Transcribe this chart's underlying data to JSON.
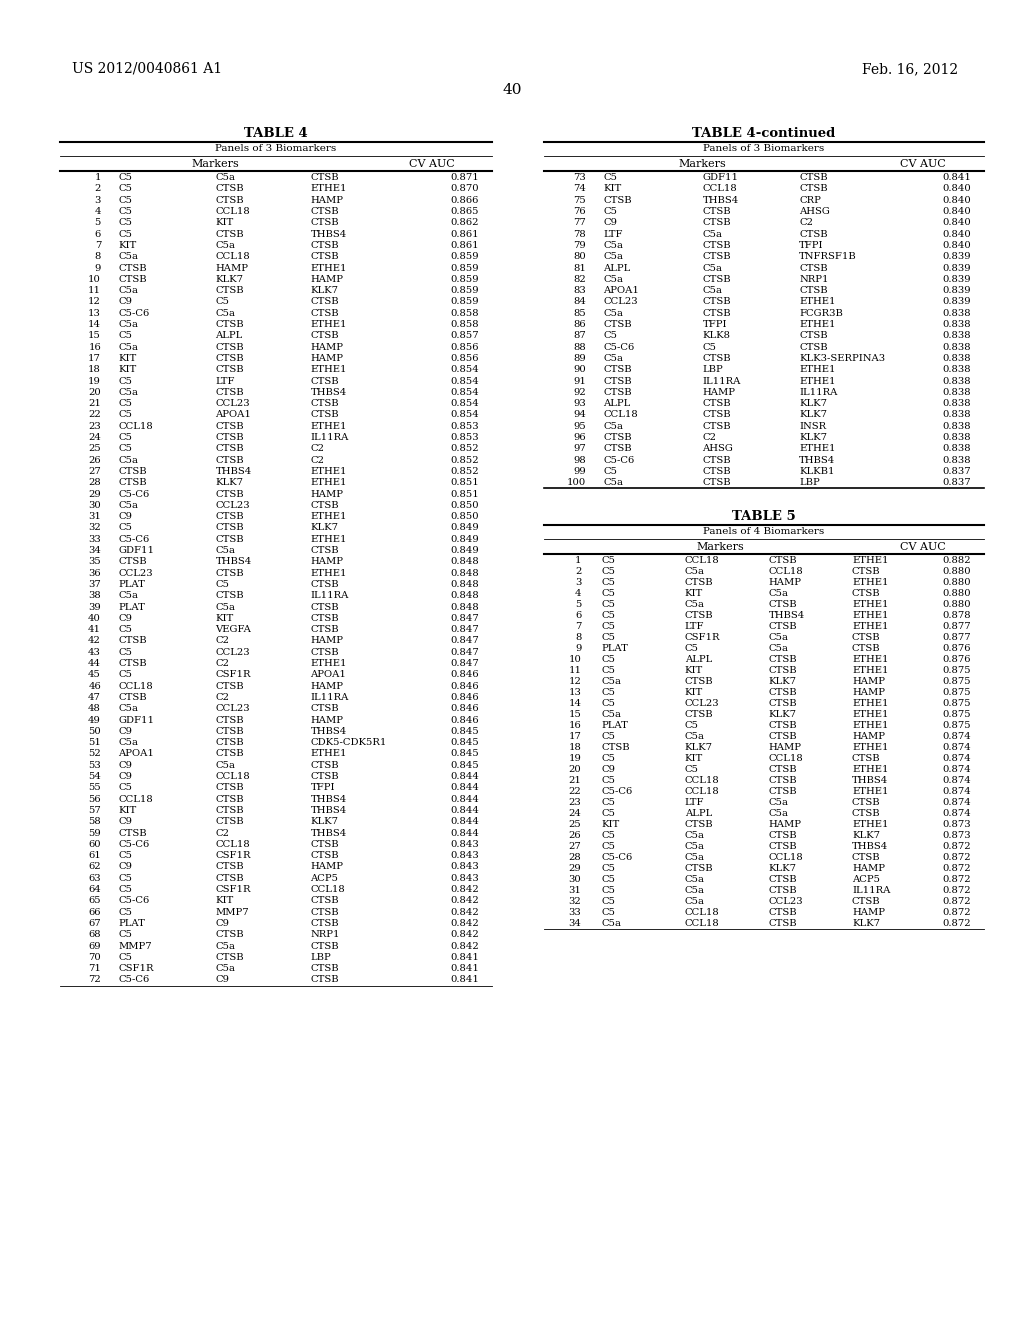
{
  "header_left": "US 2012/0040861 A1",
  "header_right": "Feb. 16, 2012",
  "page_number": "40",
  "table4_title": "TABLE 4",
  "table4_subtitle": "Panels of 3 Biomarkers",
  "table4cont_title": "TABLE 4-continued",
  "table4cont_subtitle": "Panels of 3 Biomarkers",
  "table5_title": "TABLE 5",
  "table5_subtitle": "Panels of 4 Biomarkers",
  "col3_headers": [
    "Markers",
    "CV AUC"
  ],
  "col4_headers": [
    "Markers",
    "CV AUC"
  ],
  "table4_data": [
    [
      "1",
      "C5",
      "C5a",
      "CTSB",
      "0.871"
    ],
    [
      "2",
      "C5",
      "CTSB",
      "ETHE1",
      "0.870"
    ],
    [
      "3",
      "C5",
      "CTSB",
      "HAMP",
      "0.866"
    ],
    [
      "4",
      "C5",
      "CCL18",
      "CTSB",
      "0.865"
    ],
    [
      "5",
      "C5",
      "KIT",
      "CTSB",
      "0.862"
    ],
    [
      "6",
      "C5",
      "CTSB",
      "THBS4",
      "0.861"
    ],
    [
      "7",
      "KIT",
      "C5a",
      "CTSB",
      "0.861"
    ],
    [
      "8",
      "C5a",
      "CCL18",
      "CTSB",
      "0.859"
    ],
    [
      "9",
      "CTSB",
      "HAMP",
      "ETHE1",
      "0.859"
    ],
    [
      "10",
      "CTSB",
      "KLK7",
      "HAMP",
      "0.859"
    ],
    [
      "11",
      "C5a",
      "CTSB",
      "KLK7",
      "0.859"
    ],
    [
      "12",
      "C9",
      "C5",
      "CTSB",
      "0.859"
    ],
    [
      "13",
      "C5-C6",
      "C5a",
      "CTSB",
      "0.858"
    ],
    [
      "14",
      "C5a",
      "CTSB",
      "ETHE1",
      "0.858"
    ],
    [
      "15",
      "C5",
      "ALPL",
      "CTSB",
      "0.857"
    ],
    [
      "16",
      "C5a",
      "CTSB",
      "HAMP",
      "0.856"
    ],
    [
      "17",
      "KIT",
      "CTSB",
      "HAMP",
      "0.856"
    ],
    [
      "18",
      "KIT",
      "CTSB",
      "ETHE1",
      "0.854"
    ],
    [
      "19",
      "C5",
      "LTF",
      "CTSB",
      "0.854"
    ],
    [
      "20",
      "C5a",
      "CTSB",
      "THBS4",
      "0.854"
    ],
    [
      "21",
      "C5",
      "CCL23",
      "CTSB",
      "0.854"
    ],
    [
      "22",
      "C5",
      "APOA1",
      "CTSB",
      "0.854"
    ],
    [
      "23",
      "CCL18",
      "CTSB",
      "ETHE1",
      "0.853"
    ],
    [
      "24",
      "C5",
      "CTSB",
      "IL11RA",
      "0.853"
    ],
    [
      "25",
      "C5",
      "CTSB",
      "C2",
      "0.852"
    ],
    [
      "26",
      "C5a",
      "CTSB",
      "C2",
      "0.852"
    ],
    [
      "27",
      "CTSB",
      "THBS4",
      "ETHE1",
      "0.852"
    ],
    [
      "28",
      "CTSB",
      "KLK7",
      "ETHE1",
      "0.851"
    ],
    [
      "29",
      "C5-C6",
      "CTSB",
      "HAMP",
      "0.851"
    ],
    [
      "30",
      "C5a",
      "CCL23",
      "CTSB",
      "0.850"
    ],
    [
      "31",
      "C9",
      "CTSB",
      "ETHE1",
      "0.850"
    ],
    [
      "32",
      "C5",
      "CTSB",
      "KLK7",
      "0.849"
    ],
    [
      "33",
      "C5-C6",
      "CTSB",
      "ETHE1",
      "0.849"
    ],
    [
      "34",
      "GDF11",
      "C5a",
      "CTSB",
      "0.849"
    ],
    [
      "35",
      "CTSB",
      "THBS4",
      "HAMP",
      "0.848"
    ],
    [
      "36",
      "CCL23",
      "CTSB",
      "ETHE1",
      "0.848"
    ],
    [
      "37",
      "PLAT",
      "C5",
      "CTSB",
      "0.848"
    ],
    [
      "38",
      "C5a",
      "CTSB",
      "IL11RA",
      "0.848"
    ],
    [
      "39",
      "PLAT",
      "C5a",
      "CTSB",
      "0.848"
    ],
    [
      "40",
      "C9",
      "KIT",
      "CTSB",
      "0.847"
    ],
    [
      "41",
      "C5",
      "VEGFA",
      "CTSB",
      "0.847"
    ],
    [
      "42",
      "CTSB",
      "C2",
      "HAMP",
      "0.847"
    ],
    [
      "43",
      "C5",
      "CCL23",
      "CTSB",
      "0.847"
    ],
    [
      "44",
      "CTSB",
      "C2",
      "ETHE1",
      "0.847"
    ],
    [
      "45",
      "C5",
      "CSF1R",
      "APOA1",
      "0.846"
    ],
    [
      "46",
      "CCL18",
      "CTSB",
      "HAMP",
      "0.846"
    ],
    [
      "47",
      "CTSB",
      "C2",
      "IL11RA",
      "0.846"
    ],
    [
      "48",
      "C5a",
      "CCL23",
      "CTSB",
      "0.846"
    ],
    [
      "49",
      "GDF11",
      "CTSB",
      "HAMP",
      "0.846"
    ],
    [
      "50",
      "C9",
      "CTSB",
      "THBS4",
      "0.845"
    ],
    [
      "51",
      "C5a",
      "CTSB",
      "CDK5-CDK5R1",
      "0.845"
    ],
    [
      "52",
      "APOA1",
      "CTSB",
      "ETHE1",
      "0.845"
    ],
    [
      "53",
      "C9",
      "C5a",
      "CTSB",
      "0.845"
    ],
    [
      "54",
      "C9",
      "CCL18",
      "CTSB",
      "0.844"
    ],
    [
      "55",
      "C5",
      "CTSB",
      "TFPI",
      "0.844"
    ],
    [
      "56",
      "CCL18",
      "CTSB",
      "THBS4",
      "0.844"
    ],
    [
      "57",
      "KIT",
      "CTSB",
      "THBS4",
      "0.844"
    ],
    [
      "58",
      "C9",
      "CTSB",
      "KLK7",
      "0.844"
    ],
    [
      "59",
      "CTSB",
      "C2",
      "THBS4",
      "0.844"
    ],
    [
      "60",
      "C5-C6",
      "CCL18",
      "CTSB",
      "0.843"
    ],
    [
      "61",
      "C5",
      "CSF1R",
      "CTSB",
      "0.843"
    ],
    [
      "62",
      "C9",
      "CTSB",
      "HAMP",
      "0.843"
    ],
    [
      "63",
      "C5",
      "CTSB",
      "ACP5",
      "0.843"
    ],
    [
      "64",
      "C5",
      "CSF1R",
      "CCL18",
      "0.842"
    ],
    [
      "65",
      "C5-C6",
      "KIT",
      "CTSB",
      "0.842"
    ],
    [
      "66",
      "C5",
      "MMP7",
      "CTSB",
      "0.842"
    ],
    [
      "67",
      "PLAT",
      "C9",
      "CTSB",
      "0.842"
    ],
    [
      "68",
      "C5",
      "CTSB",
      "NRP1",
      "0.842"
    ],
    [
      "69",
      "MMP7",
      "C5a",
      "CTSB",
      "0.842"
    ],
    [
      "70",
      "C5",
      "CTSB",
      "LBP",
      "0.841"
    ],
    [
      "71",
      "CSF1R",
      "C5a",
      "CTSB",
      "0.841"
    ],
    [
      "72",
      "C5-C6",
      "C9",
      "CTSB",
      "0.841"
    ]
  ],
  "table4cont_data": [
    [
      "73",
      "C5",
      "GDF11",
      "CTSB",
      "0.841"
    ],
    [
      "74",
      "KIT",
      "CCL18",
      "CTSB",
      "0.840"
    ],
    [
      "75",
      "CTSB",
      "THBS4",
      "CRP",
      "0.840"
    ],
    [
      "76",
      "C5",
      "CTSB",
      "AHSG",
      "0.840"
    ],
    [
      "77",
      "C9",
      "CTSB",
      "C2",
      "0.840"
    ],
    [
      "78",
      "LTF",
      "C5a",
      "CTSB",
      "0.840"
    ],
    [
      "79",
      "C5a",
      "CTSB",
      "TFPI",
      "0.840"
    ],
    [
      "80",
      "C5a",
      "CTSB",
      "TNFRSF1B",
      "0.839"
    ],
    [
      "81",
      "ALPL",
      "C5a",
      "CTSB",
      "0.839"
    ],
    [
      "82",
      "C5a",
      "CTSB",
      "NRP1",
      "0.839"
    ],
    [
      "83",
      "APOA1",
      "C5a",
      "CTSB",
      "0.839"
    ],
    [
      "84",
      "CCL23",
      "CTSB",
      "ETHE1",
      "0.839"
    ],
    [
      "85",
      "C5a",
      "CTSB",
      "FCGR3B",
      "0.838"
    ],
    [
      "86",
      "CTSB",
      "TFPI",
      "ETHE1",
      "0.838"
    ],
    [
      "87",
      "C5",
      "KLK8",
      "CTSB",
      "0.838"
    ],
    [
      "88",
      "C5-C6",
      "C5",
      "CTSB",
      "0.838"
    ],
    [
      "89",
      "C5a",
      "CTSB",
      "KLK3-SERPINA3",
      "0.838"
    ],
    [
      "90",
      "CTSB",
      "LBP",
      "ETHE1",
      "0.838"
    ],
    [
      "91",
      "CTSB",
      "IL11RA",
      "ETHE1",
      "0.838"
    ],
    [
      "92",
      "CTSB",
      "HAMP",
      "IL11RA",
      "0.838"
    ],
    [
      "93",
      "ALPL",
      "CTSB",
      "KLK7",
      "0.838"
    ],
    [
      "94",
      "CCL18",
      "CTSB",
      "KLK7",
      "0.838"
    ],
    [
      "95",
      "C5a",
      "CTSB",
      "INSR",
      "0.838"
    ],
    [
      "96",
      "CTSB",
      "C2",
      "KLK7",
      "0.838"
    ],
    [
      "97",
      "CTSB",
      "AHSG",
      "ETHE1",
      "0.838"
    ],
    [
      "98",
      "C5-C6",
      "CTSB",
      "THBS4",
      "0.838"
    ],
    [
      "99",
      "C5",
      "CTSB",
      "KLKB1",
      "0.837"
    ],
    [
      "100",
      "C5a",
      "CTSB",
      "LBP",
      "0.837"
    ]
  ],
  "table5_data": [
    [
      "1",
      "C5",
      "CCL18",
      "CTSB",
      "ETHE1",
      "0.882"
    ],
    [
      "2",
      "C5",
      "C5a",
      "CCL18",
      "CTSB",
      "0.880"
    ],
    [
      "3",
      "C5",
      "CTSB",
      "HAMP",
      "ETHE1",
      "0.880"
    ],
    [
      "4",
      "C5",
      "KIT",
      "C5a",
      "CTSB",
      "0.880"
    ],
    [
      "5",
      "C5",
      "C5a",
      "CTSB",
      "ETHE1",
      "0.880"
    ],
    [
      "6",
      "C5",
      "CTSB",
      "THBS4",
      "ETHE1",
      "0.878"
    ],
    [
      "7",
      "C5",
      "LTF",
      "CTSB",
      "ETHE1",
      "0.877"
    ],
    [
      "8",
      "C5",
      "CSF1R",
      "C5a",
      "CTSB",
      "0.877"
    ],
    [
      "9",
      "PLAT",
      "C5",
      "C5a",
      "CTSB",
      "0.876"
    ],
    [
      "10",
      "C5",
      "ALPL",
      "CTSB",
      "ETHE1",
      "0.876"
    ],
    [
      "11",
      "C5",
      "KIT",
      "CTSB",
      "ETHE1",
      "0.875"
    ],
    [
      "12",
      "C5a",
      "CTSB",
      "KLK7",
      "HAMP",
      "0.875"
    ],
    [
      "13",
      "C5",
      "KIT",
      "CTSB",
      "HAMP",
      "0.875"
    ],
    [
      "14",
      "C5",
      "CCL23",
      "CTSB",
      "ETHE1",
      "0.875"
    ],
    [
      "15",
      "C5a",
      "CTSB",
      "KLK7",
      "ETHE1",
      "0.875"
    ],
    [
      "16",
      "PLAT",
      "C5",
      "CTSB",
      "ETHE1",
      "0.875"
    ],
    [
      "17",
      "C5",
      "C5a",
      "CTSB",
      "HAMP",
      "0.874"
    ],
    [
      "18",
      "CTSB",
      "KLK7",
      "HAMP",
      "ETHE1",
      "0.874"
    ],
    [
      "19",
      "C5",
      "KIT",
      "CCL18",
      "CTSB",
      "0.874"
    ],
    [
      "20",
      "C9",
      "C5",
      "CTSB",
      "ETHE1",
      "0.874"
    ],
    [
      "21",
      "C5",
      "CCL18",
      "CTSB",
      "THBS4",
      "0.874"
    ],
    [
      "22",
      "C5-C6",
      "CCL18",
      "CTSB",
      "ETHE1",
      "0.874"
    ],
    [
      "23",
      "C5",
      "LTF",
      "C5a",
      "CTSB",
      "0.874"
    ],
    [
      "24",
      "C5",
      "ALPL",
      "C5a",
      "CTSB",
      "0.874"
    ],
    [
      "25",
      "KIT",
      "CTSB",
      "HAMP",
      "ETHE1",
      "0.873"
    ],
    [
      "26",
      "C5",
      "C5a",
      "CTSB",
      "KLK7",
      "0.873"
    ],
    [
      "27",
      "C5",
      "C5a",
      "CTSB",
      "THBS4",
      "0.872"
    ],
    [
      "28",
      "C5-C6",
      "C5a",
      "CCL18",
      "CTSB",
      "0.872"
    ],
    [
      "29",
      "C5",
      "CTSB",
      "KLK7",
      "HAMP",
      "0.872"
    ],
    [
      "30",
      "C5",
      "C5a",
      "CTSB",
      "ACP5",
      "0.872"
    ],
    [
      "31",
      "C5",
      "C5a",
      "CTSB",
      "IL11RA",
      "0.872"
    ],
    [
      "32",
      "C5",
      "C5a",
      "CCL23",
      "CTSB",
      "0.872"
    ],
    [
      "33",
      "C5",
      "CCL18",
      "CTSB",
      "HAMP",
      "0.872"
    ],
    [
      "34",
      "C5a",
      "CCL18",
      "CTSB",
      "KLK7",
      "0.872"
    ]
  ]
}
